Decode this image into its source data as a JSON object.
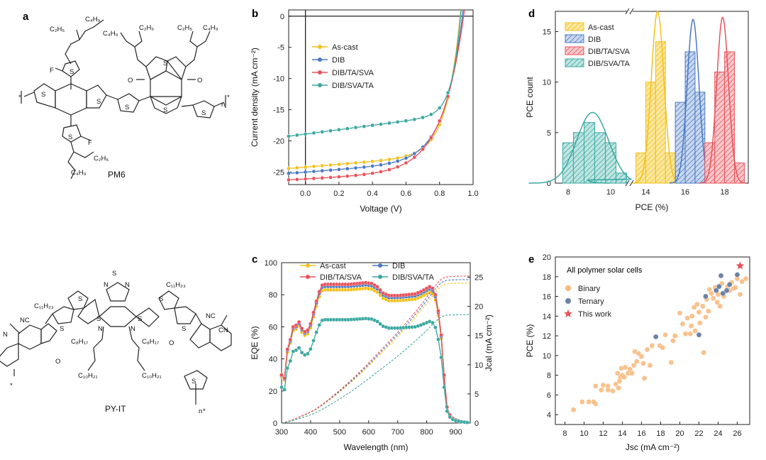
{
  "panels": {
    "a": "a",
    "b": "b",
    "c": "c",
    "d": "d",
    "e": "e"
  },
  "molecules": {
    "top_name": "PM6",
    "bottom_name": "PY-IT",
    "labels": {
      "c2h5": "C₂H₅",
      "c4h9": "C₄H₉",
      "f": "F",
      "s": "S",
      "o": "O",
      "n": "N",
      "n_sub": "n",
      "c11h23": "C₁₁H₂₃",
      "c8h17": "C₈H₁₇",
      "c10h21": "C₁₀H₂₁",
      "cn": "NC",
      "cn2": "CN",
      "star": "*"
    }
  },
  "chart_data": [
    {
      "id": "b",
      "type": "line",
      "title": "",
      "xlabel": "Voltage (V)",
      "ylabel": "Current density (mA cm⁻²)",
      "xlim": [
        -0.1,
        1.0
      ],
      "ylim": [
        -27,
        1
      ],
      "xticks": [
        0.0,
        0.2,
        0.4,
        0.6,
        0.8,
        1.0
      ],
      "xtick_labels": [
        "0.0",
        "0.2",
        "0.4",
        "0.6",
        "0.8",
        "1.0"
      ],
      "yticks": [
        0,
        -5,
        -10,
        -15,
        -20,
        -25
      ],
      "ytick_labels": [
        "0",
        "-5",
        "-10",
        "-15",
        "-20",
        "-25"
      ],
      "legend_position": "upper-left",
      "series": [
        {
          "name": "As-cast",
          "color": "#f2c11c",
          "jsc": 24.2,
          "voc": 0.93,
          "n": 3.2,
          "shunt": 2.2
        },
        {
          "name": "DIB",
          "color": "#4a78c2",
          "jsc": 25.0,
          "voc": 0.945,
          "n": 4.2,
          "shunt": 2.0
        },
        {
          "name": "DIB/TA/SVA",
          "color": "#e8525a",
          "jsc": 26.1,
          "voc": 0.95,
          "n": 5.0,
          "shunt": 1.4
        },
        {
          "name": "DIB/SVA/TA",
          "color": "#3aa8a0",
          "jsc": 18.9,
          "voc": 0.935,
          "n": 2.0,
          "shunt": 3.5
        }
      ]
    },
    {
      "id": "c",
      "type": "line",
      "title": "",
      "xlabel": "Wavelength (nm)",
      "ylabel": "EQE (%)",
      "y2label": "Jcal (mA cm⁻²)",
      "xlim": [
        300,
        950
      ],
      "ylim": [
        0,
        100
      ],
      "y2lim": [
        0,
        27.5
      ],
      "xticks": [
        300,
        400,
        500,
        600,
        700,
        800,
        900
      ],
      "yticks": [
        0,
        20,
        40,
        60,
        80,
        100
      ],
      "y2ticks": [
        0,
        5,
        10,
        15,
        20,
        25
      ],
      "legend_position": "top",
      "series": [
        {
          "name": "As-cast",
          "color": "#f2c11c",
          "scale": 0.96,
          "jcal": 24.0
        },
        {
          "name": "DIB",
          "color": "#4a78c2",
          "scale": 0.985,
          "jcal": 24.6
        },
        {
          "name": "DIB/TA/SVA",
          "color": "#e8525a",
          "scale": 1.0,
          "jcal": 25.2
        },
        {
          "name": "DIB/SVA/TA",
          "color": "#3aa8a0",
          "scale": 0.745,
          "jcal": 18.6
        }
      ],
      "base_eqe": [
        [
          300,
          30
        ],
        [
          310,
          28
        ],
        [
          320,
          46
        ],
        [
          330,
          52
        ],
        [
          340,
          60
        ],
        [
          350,
          61
        ],
        [
          360,
          63
        ],
        [
          370,
          59
        ],
        [
          380,
          57
        ],
        [
          390,
          58
        ],
        [
          400,
          62
        ],
        [
          410,
          69
        ],
        [
          420,
          76
        ],
        [
          430,
          82
        ],
        [
          440,
          86
        ],
        [
          450,
          86.5
        ],
        [
          470,
          86.5
        ],
        [
          500,
          86.5
        ],
        [
          530,
          86.5
        ],
        [
          560,
          87
        ],
        [
          590,
          87.5
        ],
        [
          610,
          87
        ],
        [
          630,
          85
        ],
        [
          650,
          81
        ],
        [
          670,
          79.5
        ],
        [
          700,
          79.5
        ],
        [
          730,
          80
        ],
        [
          760,
          80.5
        ],
        [
          780,
          82
        ],
        [
          800,
          84
        ],
        [
          810,
          85
        ],
        [
          820,
          84
        ],
        [
          830,
          80
        ],
        [
          840,
          70
        ],
        [
          850,
          55
        ],
        [
          860,
          30
        ],
        [
          870,
          10
        ],
        [
          880,
          5
        ],
        [
          890,
          3
        ],
        [
          900,
          2
        ],
        [
          920,
          1
        ],
        [
          940,
          0.5
        ],
        [
          950,
          0.5
        ]
      ],
      "marker_x": [
        300,
        310,
        320,
        330,
        340,
        350,
        360,
        370,
        380,
        390,
        400,
        410,
        420,
        430,
        440,
        450,
        460,
        470,
        480,
        490,
        500,
        510,
        520,
        530,
        540,
        550,
        560,
        570,
        580,
        590,
        600,
        610,
        620,
        630,
        640,
        650,
        660,
        670,
        680,
        690,
        700,
        710,
        720,
        730,
        740,
        750,
        760,
        770,
        780,
        790,
        800,
        810,
        820,
        830,
        840,
        850,
        860,
        870,
        880,
        890,
        900,
        910,
        920,
        930,
        940
      ]
    },
    {
      "id": "d",
      "type": "bar",
      "title": "",
      "xlabel": "PCE (%)",
      "ylabel": "PCE count",
      "ylim": [
        0,
        17
      ],
      "xticks": [
        8,
        10,
        14,
        16,
        18
      ],
      "yticks": [
        0,
        5,
        10,
        15
      ],
      "axis_break": "between 10.5 and 13.5",
      "legend_position": "top-left",
      "series": [
        {
          "name": "As-cast",
          "color": "#f2c11c",
          "bins": [
            [
              13.75,
              3
            ],
            [
              14.25,
              10
            ],
            [
              14.75,
              14
            ],
            [
              15.25,
              3
            ]
          ],
          "fit_mean": 14.6,
          "fit_sd": 0.32,
          "fit_peak": 17
        },
        {
          "name": "DIB",
          "color": "#4a78c2",
          "bins": [
            [
              15.75,
              8
            ],
            [
              16.25,
              13
            ],
            [
              16.75,
              9
            ]
          ],
          "fit_mean": 16.4,
          "fit_sd": 0.3,
          "fit_peak": 16.2
        },
        {
          "name": "DIB/TA/SVA",
          "color": "#e8525a",
          "bins": [
            [
              17.25,
              4
            ],
            [
              17.75,
              11
            ],
            [
              18.25,
              13
            ],
            [
              18.75,
              2
            ]
          ],
          "fit_mean": 17.9,
          "fit_sd": 0.3,
          "fit_peak": 16.4
        },
        {
          "name": "DIB/SVA/TA",
          "color": "#3aa8a0",
          "bins": [
            [
              8.0,
              4
            ],
            [
              8.5,
              5
            ],
            [
              9.0,
              6
            ],
            [
              9.5,
              5
            ],
            [
              10.0,
              4
            ],
            [
              10.5,
              1
            ]
          ],
          "fit_mean": 9.15,
          "fit_sd": 0.75,
          "fit_peak": 7
        }
      ]
    },
    {
      "id": "e",
      "type": "scatter",
      "title": "All polymer solar cells",
      "xlabel": "Jsc (mA cm⁻²)",
      "ylabel": "PCE (%)",
      "xlim": [
        7,
        27.3
      ],
      "ylim": [
        3,
        20
      ],
      "xticks": [
        8,
        10,
        12,
        14,
        16,
        18,
        20,
        22,
        24,
        26
      ],
      "yticks": [
        4,
        6,
        8,
        10,
        12,
        14,
        16,
        18,
        20
      ],
      "legend_position": "top-left",
      "series": [
        {
          "name": "Binary",
          "color": "#f7b77a",
          "points": [
            [
              8.9,
              4.5
            ],
            [
              9.8,
              5.3
            ],
            [
              10.5,
              5.3
            ],
            [
              11.2,
              5.1
            ],
            [
              11.0,
              5.3
            ],
            [
              11.2,
              6.9
            ],
            [
              11.8,
              6.5
            ],
            [
              12.0,
              7.0
            ],
            [
              12.5,
              6.9
            ],
            [
              12.5,
              6.5
            ],
            [
              13.0,
              6.4
            ],
            [
              13.3,
              7.1
            ],
            [
              13.6,
              6.7
            ],
            [
              13.7,
              7.4
            ],
            [
              13.5,
              8.2
            ],
            [
              13.8,
              7.8
            ],
            [
              13.9,
              8.7
            ],
            [
              14.0,
              8.0
            ],
            [
              14.3,
              8.8
            ],
            [
              14.2,
              7.8
            ],
            [
              14.6,
              8.2
            ],
            [
              14.8,
              8.6
            ],
            [
              15.0,
              8.2
            ],
            [
              15.2,
              9.0
            ],
            [
              15.5,
              9.4
            ],
            [
              15.7,
              10.2
            ],
            [
              15.3,
              10.4
            ],
            [
              16.0,
              9.9
            ],
            [
              16.2,
              9.2
            ],
            [
              16.3,
              7.7
            ],
            [
              16.6,
              10.6
            ],
            [
              16.9,
              9.0
            ],
            [
              17.1,
              11.0
            ],
            [
              17.5,
              11.9
            ],
            [
              17.9,
              11.0
            ],
            [
              18.2,
              10.8
            ],
            [
              18.5,
              12.1
            ],
            [
              19.1,
              9.3
            ],
            [
              19.3,
              11.5
            ],
            [
              19.5,
              12.0
            ],
            [
              20.0,
              14.3
            ],
            [
              20.3,
              13.2
            ],
            [
              20.6,
              12.2
            ],
            [
              20.8,
              13.8
            ],
            [
              21.1,
              12.2
            ],
            [
              21.2,
              13.0
            ],
            [
              21.3,
              14.0
            ],
            [
              21.5,
              14.9
            ],
            [
              21.6,
              12.5
            ],
            [
              21.8,
              15.2
            ],
            [
              22.0,
              14.4
            ],
            [
              22.1,
              13.3
            ],
            [
              22.4,
              15.0
            ],
            [
              22.5,
              10.3
            ],
            [
              22.7,
              13.9
            ],
            [
              22.8,
              15.7
            ],
            [
              23.0,
              14.5
            ],
            [
              23.1,
              16.7
            ],
            [
              23.3,
              16.3
            ],
            [
              23.5,
              15.8
            ],
            [
              23.7,
              16.9
            ],
            [
              23.9,
              15.4
            ],
            [
              24.0,
              16.2
            ],
            [
              24.2,
              15.0
            ],
            [
              24.4,
              17.3
            ],
            [
              24.6,
              16.0
            ],
            [
              24.8,
              16.5
            ],
            [
              25.0,
              17.0
            ],
            [
              25.2,
              16.6
            ],
            [
              25.4,
              17.4
            ],
            [
              25.6,
              16.8
            ],
            [
              25.8,
              16.9
            ],
            [
              26.0,
              17.8
            ],
            [
              26.3,
              16.2
            ],
            [
              26.5,
              17.5
            ],
            [
              26.9,
              17.8
            ]
          ]
        },
        {
          "name": "Ternary",
          "color": "#6c82a5",
          "points": [
            [
              17.5,
              11.9
            ],
            [
              22.0,
              12.1
            ],
            [
              22.7,
              16.0
            ],
            [
              23.8,
              16.6
            ],
            [
              24.1,
              17.0
            ],
            [
              24.3,
              18.1
            ],
            [
              24.5,
              16.3
            ],
            [
              24.9,
              16.6
            ],
            [
              25.2,
              17.2
            ],
            [
              26.0,
              18.2
            ]
          ]
        },
        {
          "name": "This work",
          "color": "#e8525a",
          "points": [
            [
              26.3,
              19.1
            ]
          ]
        }
      ]
    }
  ]
}
